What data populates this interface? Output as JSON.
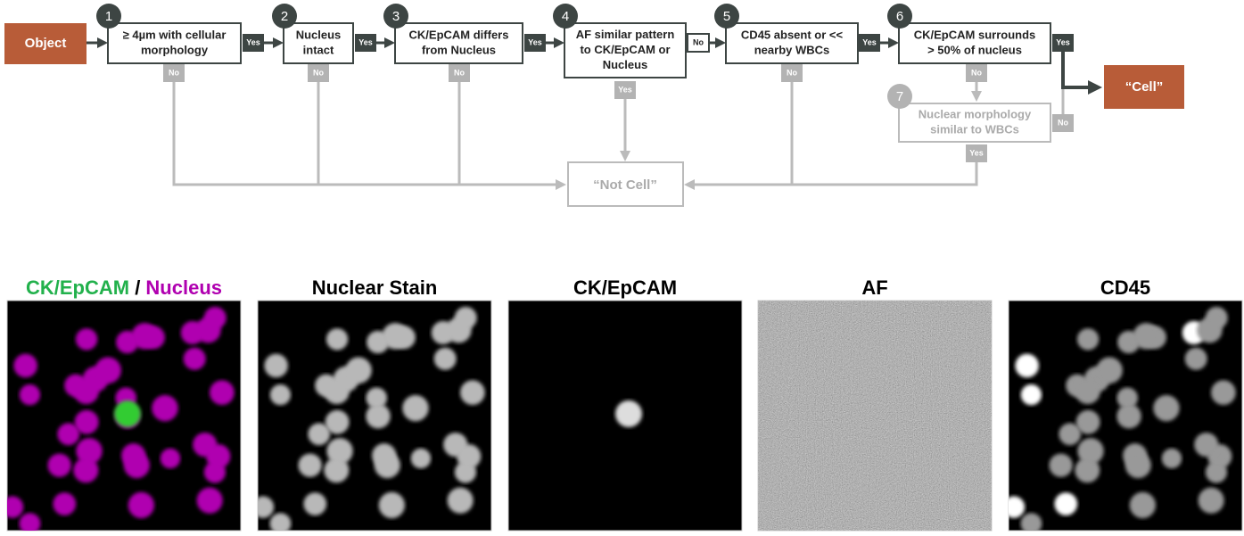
{
  "start": {
    "label": "Object"
  },
  "nodes": [
    {
      "number": "1",
      "lines": [
        "≥ 4µm with cellular",
        "morphology"
      ],
      "yes": "Yes",
      "no": "No"
    },
    {
      "number": "2",
      "lines": [
        "Nucleus",
        "intact"
      ],
      "yes": "Yes",
      "no": "No"
    },
    {
      "number": "3",
      "lines": [
        "CK/EpCAM differs",
        "from Nucleus"
      ],
      "yes": "Yes",
      "no": "No"
    },
    {
      "number": "4",
      "lines": [
        "AF similar pattern",
        "to CK/EpCAM or",
        "Nucleus"
      ],
      "yes": "Yes",
      "no": "No"
    },
    {
      "number": "5",
      "lines": [
        "CD45 absent or <<",
        "nearby WBCs"
      ],
      "yes": "Yes",
      "no": "No"
    },
    {
      "number": "6",
      "lines": [
        "CK/EpCAM surrounds",
        "> 50% of nucleus"
      ],
      "yes": "Yes",
      "no": "No"
    },
    {
      "number": "7",
      "lines": [
        "Nuclear morphology",
        "similar to WBCs"
      ],
      "yes": "Yes",
      "no": "No"
    }
  ],
  "results": {
    "cell": "“Cell”",
    "not_cell": "“Not Cell”"
  },
  "panels": [
    {
      "title_parts": [
        "CK/EpCAM",
        " / ",
        "Nucleus"
      ]
    },
    {
      "title": "Nuclear Stain"
    },
    {
      "title": "CK/EpCAM"
    },
    {
      "title": "AF"
    },
    {
      "title": "CD45"
    }
  ]
}
